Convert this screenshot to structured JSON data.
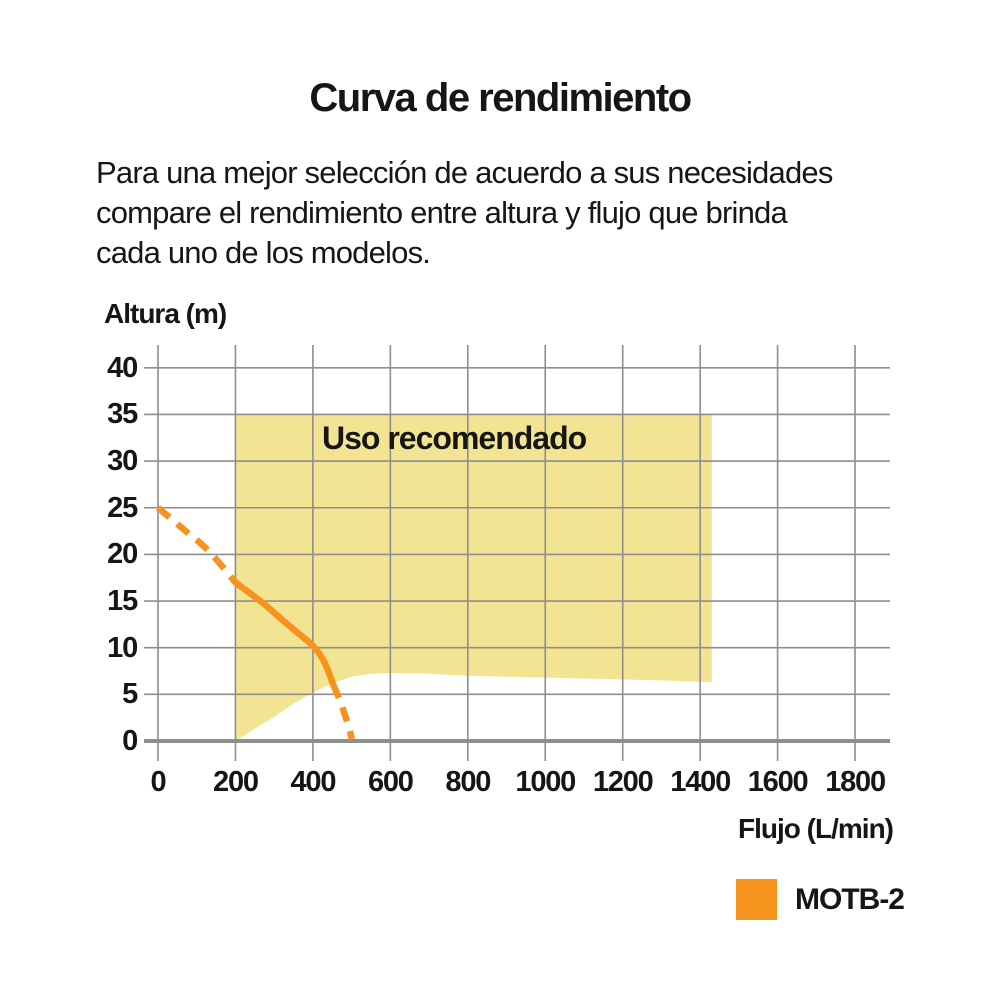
{
  "page": {
    "title": "Curva de rendimiento",
    "description_lines": [
      "Para una mejor selección de acuerdo a sus necesidades",
      "compare el rendimiento entre altura y flujo que brinda",
      "cada uno de los modelos."
    ]
  },
  "colors": {
    "accent_orange": "#F6921E",
    "recommended_fill": "#F2E492",
    "grid": "#8E8E8E",
    "axis": "#8E8E8E",
    "text": "#161616"
  },
  "chart_data": {
    "type": "line",
    "title": "Curva de rendimiento",
    "xlabel": "Flujo (L/min)",
    "ylabel": "Altura (m)",
    "xlim": [
      0,
      1900
    ],
    "ylim": [
      0,
      42
    ],
    "grid": true,
    "x_ticks": [
      0,
      200,
      400,
      600,
      800,
      1000,
      1200,
      1400,
      1600,
      1800
    ],
    "y_ticks": [
      0,
      5,
      10,
      15,
      20,
      25,
      30,
      35,
      40
    ],
    "recommended_region": {
      "label": "Uso recomendado",
      "fill": "#F2E492",
      "top": 35,
      "x_start": 200,
      "x_end": 1430,
      "bottom_boundary": [
        [
          200,
          0
        ],
        [
          250,
          1.3
        ],
        [
          300,
          2.6
        ],
        [
          350,
          4.0
        ],
        [
          400,
          5.2
        ],
        [
          450,
          6.2
        ],
        [
          500,
          6.9
        ],
        [
          550,
          7.2
        ],
        [
          600,
          7.3
        ],
        [
          700,
          7.2
        ],
        [
          800,
          7.0
        ],
        [
          900,
          6.9
        ],
        [
          1000,
          6.8
        ],
        [
          1100,
          6.7
        ],
        [
          1200,
          6.6
        ],
        [
          1300,
          6.5
        ],
        [
          1430,
          6.3
        ]
      ]
    },
    "series": [
      {
        "name": "MOTB-2",
        "color": "#F6921E",
        "segments": [
          {
            "style": "dashed",
            "points": [
              [
                0,
                25
              ],
              [
                60,
                22.9
              ],
              [
                130,
                20.4
              ],
              [
                200,
                17
              ]
            ]
          },
          {
            "style": "solid",
            "points": [
              [
                200,
                17
              ],
              [
                270,
                14.8
              ],
              [
                340,
                12.3
              ],
              [
                400,
                10.2
              ],
              [
                430,
                8.4
              ],
              [
                452,
                6.1
              ]
            ]
          },
          {
            "style": "dashed",
            "points": [
              [
                452,
                6.1
              ],
              [
                470,
                4.3
              ],
              [
                488,
                2.1
              ],
              [
                501,
                0.2
              ]
            ]
          }
        ]
      }
    ],
    "legend": [
      {
        "label": "MOTB-2",
        "color": "#F6921E"
      }
    ],
    "legend_position": "bottom-right"
  }
}
